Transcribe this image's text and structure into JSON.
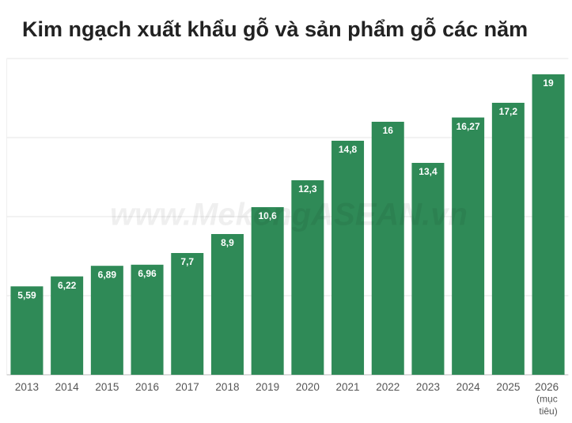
{
  "chart_data": {
    "type": "bar",
    "title": "Kim ngạch xuất khẩu gỗ và sản phẩm gỗ các năm",
    "watermark": "www.MekongASEAN.vn",
    "categories": [
      "2013",
      "2014",
      "2015",
      "2016",
      "2017",
      "2018",
      "2019",
      "2020",
      "2021",
      "2022",
      "2023",
      "2024",
      "2025",
      "2026 (mục tiêu)"
    ],
    "values": [
      5.59,
      6.22,
      6.89,
      6.96,
      7.7,
      8.9,
      10.6,
      12.3,
      14.8,
      16,
      13.4,
      16.27,
      17.2,
      19
    ],
    "value_labels": [
      "5,59",
      "6,22",
      "6,89",
      "6,96",
      "7,7",
      "8,9",
      "10,6",
      "12,3",
      "14,8",
      "16",
      "13,4",
      "16,27",
      "17,2",
      "19"
    ],
    "color": "#2f8a57",
    "ylim": [
      0,
      20
    ],
    "yticks": [
      0,
      5,
      10,
      15,
      20
    ],
    "grid": true
  }
}
